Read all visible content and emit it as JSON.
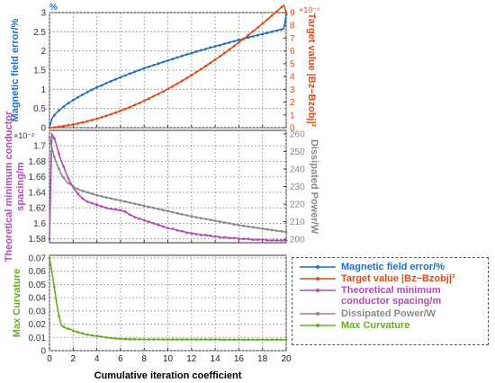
{
  "colors": {
    "blue": "#1f6fc4",
    "red": "#e04a1a",
    "purple": "#b24bb5",
    "gray": "#8a8a8a",
    "green": "#6aab26"
  },
  "chart_data": [
    {
      "type": "line",
      "panel": "top",
      "x": [
        0,
        0.2,
        0.4,
        0.6,
        0.8,
        1,
        1.2,
        1.4,
        1.6,
        1.8,
        2,
        2.2,
        2.4,
        2.6,
        2.8,
        3,
        3.2,
        3.4,
        3.6,
        3.8,
        4,
        4.2,
        4.4,
        4.6,
        4.8,
        5,
        5.2,
        5.4,
        5.6,
        5.8,
        6,
        6.2,
        6.4,
        6.6,
        6.8,
        7,
        7.2,
        7.4,
        7.6,
        7.8,
        8,
        8.2,
        8.4,
        8.6,
        8.8,
        9,
        9.2,
        9.4,
        9.6,
        9.8,
        10,
        10.2,
        10.4,
        10.6,
        10.8,
        11,
        11.2,
        11.4,
        11.6,
        11.8,
        12,
        12.2,
        12.4,
        12.6,
        12.8,
        13,
        13.2,
        13.4,
        13.6,
        13.8,
        14,
        14.2,
        14.4,
        14.6,
        14.8,
        15,
        15.2,
        15.4,
        15.6,
        15.8,
        16,
        16.2,
        16.4,
        16.6,
        16.8,
        17,
        17.2,
        17.4,
        17.6,
        17.8,
        18,
        18.2,
        18.4,
        18.6,
        18.8,
        19,
        19.2,
        19.4,
        19.6,
        19.8,
        20
      ],
      "left_axis": {
        "label": "Magnetic field error/%",
        "unit_label": "%",
        "ylim": [
          0,
          3
        ],
        "ticks": [
          "0",
          "0.5",
          "1",
          "1.5",
          "2",
          "2.5",
          "3"
        ]
      },
      "right_axis": {
        "label": "Target value |Bz−Bzobj|²",
        "exponent_label": "×10⁻⁶",
        "ylim": [
          0,
          9
        ],
        "ticks": [
          "0",
          "1",
          "2",
          "3",
          "4",
          "5",
          "6",
          "7",
          "8",
          "9"
        ]
      },
      "series": [
        {
          "name": "Magnetic field error/%",
          "axis": "left",
          "color": "#1f6fc4",
          "values": [
            0.0,
            0.23,
            0.32,
            0.39,
            0.45,
            0.5,
            0.55,
            0.6,
            0.64,
            0.68,
            0.72,
            0.76,
            0.79,
            0.83,
            0.86,
            0.89,
            0.93,
            0.96,
            0.99,
            1.02,
            1.05,
            1.08,
            1.1,
            1.13,
            1.16,
            1.19,
            1.21,
            1.24,
            1.26,
            1.29,
            1.31,
            1.34,
            1.36,
            1.39,
            1.41,
            1.43,
            1.46,
            1.48,
            1.5,
            1.52,
            1.55,
            1.57,
            1.59,
            1.61,
            1.63,
            1.65,
            1.67,
            1.69,
            1.71,
            1.73,
            1.75,
            1.77,
            1.79,
            1.81,
            1.83,
            1.85,
            1.87,
            1.89,
            1.91,
            1.92,
            1.94,
            1.96,
            1.98,
            2.0,
            2.02,
            2.03,
            2.05,
            2.07,
            2.09,
            2.1,
            2.12,
            2.14,
            2.15,
            2.17,
            2.19,
            2.2,
            2.22,
            2.24,
            2.25,
            2.27,
            2.29,
            2.3,
            2.32,
            2.33,
            2.35,
            2.37,
            2.38,
            2.4,
            2.41,
            2.43,
            2.44,
            2.46,
            2.47,
            2.49,
            2.5,
            2.52,
            2.53,
            2.55,
            2.56,
            2.58,
            2.95
          ]
        },
        {
          "name": "Target value |Bz−Bzobj|²",
          "axis": "right",
          "color": "#e04a1a",
          "values": [
            0.0,
            0.01,
            0.03,
            0.05,
            0.08,
            0.1,
            0.13,
            0.16,
            0.19,
            0.22,
            0.25,
            0.29,
            0.33,
            0.37,
            0.41,
            0.45,
            0.5,
            0.55,
            0.6,
            0.65,
            0.7,
            0.75,
            0.81,
            0.87,
            0.93,
            0.99,
            1.05,
            1.12,
            1.18,
            1.25,
            1.32,
            1.39,
            1.46,
            1.54,
            1.61,
            1.69,
            1.77,
            1.85,
            1.93,
            2.02,
            2.1,
            2.19,
            2.28,
            2.37,
            2.46,
            2.55,
            2.64,
            2.74,
            2.83,
            2.93,
            3.03,
            3.13,
            3.23,
            3.34,
            3.44,
            3.55,
            3.66,
            3.77,
            3.88,
            3.99,
            4.1,
            4.22,
            4.34,
            4.45,
            4.57,
            4.69,
            4.82,
            4.94,
            5.06,
            5.19,
            5.32,
            5.45,
            5.58,
            5.71,
            5.84,
            5.97,
            6.11,
            6.25,
            6.38,
            6.52,
            6.66,
            6.81,
            6.95,
            7.09,
            7.24,
            7.39,
            7.53,
            7.68,
            7.83,
            7.99,
            8.14,
            8.29,
            8.45,
            8.61,
            8.76,
            8.92,
            9.08,
            9.25,
            9.41,
            9.57,
            9.0
          ]
        }
      ]
    },
    {
      "type": "line",
      "panel": "middle",
      "x": [
        0,
        0.2,
        0.4,
        0.6,
        0.8,
        1,
        1.2,
        1.4,
        1.6,
        1.8,
        2,
        2.2,
        2.4,
        2.6,
        2.8,
        3,
        3.2,
        3.4,
        3.6,
        3.8,
        4,
        4.2,
        4.4,
        4.6,
        4.8,
        5,
        5.2,
        5.4,
        5.6,
        5.8,
        6,
        6.2,
        6.4,
        6.6,
        6.8,
        7,
        7.2,
        7.4,
        7.6,
        7.8,
        8,
        8.2,
        8.4,
        8.6,
        8.8,
        9,
        9.2,
        9.4,
        9.6,
        9.8,
        10,
        10.2,
        10.4,
        10.6,
        10.8,
        11,
        11.2,
        11.4,
        11.6,
        11.8,
        12,
        12.2,
        12.4,
        12.6,
        12.8,
        13,
        13.2,
        13.4,
        13.6,
        13.8,
        14,
        14.2,
        14.4,
        14.6,
        14.8,
        15,
        15.2,
        15.4,
        15.6,
        15.8,
        16,
        16.2,
        16.4,
        16.6,
        16.8,
        17,
        17.2,
        17.4,
        17.6,
        17.8,
        18,
        18.2,
        18.4,
        18.6,
        18.8,
        19,
        19.2,
        19.4,
        19.6,
        19.8,
        20
      ],
      "left_axis": {
        "label": "Theoretical minimum conductor spacing/m",
        "exponent_label": "×10⁻²",
        "ylim": [
          1.575,
          1.72
        ],
        "ticks": [
          "1.58",
          "1.6",
          "1.62",
          "1.64",
          "1.66",
          "1.68",
          "1.7"
        ]
      },
      "right_axis": {
        "label": "Dissipated Power/W",
        "ylim": [
          198,
          262
        ],
        "ticks": [
          "200",
          "210",
          "220",
          "230",
          "240",
          "250",
          "260"
        ]
      },
      "series": [
        {
          "name": "Theoretical minimum conductor spacing/m",
          "axis": "left",
          "color": "#b24bb5",
          "values": [
            1.58,
            1.715,
            1.71,
            1.7,
            1.69,
            1.68,
            1.673,
            1.665,
            1.658,
            1.652,
            1.647,
            1.642,
            1.638,
            1.635,
            1.632,
            1.63,
            1.628,
            1.627,
            1.626,
            1.625,
            1.624,
            1.623,
            1.622,
            1.621,
            1.62,
            1.619,
            1.619,
            1.618,
            1.618,
            1.617,
            1.617,
            1.616,
            1.615,
            1.613,
            1.611,
            1.61,
            1.608,
            1.607,
            1.606,
            1.605,
            1.604,
            1.603,
            1.602,
            1.601,
            1.6,
            1.599,
            1.598,
            1.597,
            1.596,
            1.595,
            1.594,
            1.593,
            1.593,
            1.592,
            1.591,
            1.59,
            1.59,
            1.589,
            1.588,
            1.588,
            1.587,
            1.587,
            1.586,
            1.586,
            1.585,
            1.585,
            1.585,
            1.584,
            1.584,
            1.583,
            1.583,
            1.583,
            1.582,
            1.582,
            1.582,
            1.582,
            1.581,
            1.581,
            1.581,
            1.581,
            1.58,
            1.58,
            1.58,
            1.58,
            1.58,
            1.579,
            1.579,
            1.579,
            1.579,
            1.579,
            1.579,
            1.579,
            1.578,
            1.578,
            1.578,
            1.578,
            1.578,
            1.578,
            1.578,
            1.578,
            1.578
          ]
        },
        {
          "name": "Dissipated Power/W",
          "axis": "right",
          "color": "#8a8a8a",
          "values": [
            258,
            252,
            247,
            243,
            240,
            237,
            235,
            233,
            232,
            231,
            230,
            229.2,
            228.5,
            228,
            227.5,
            227.1,
            226.7,
            226.3,
            225.9,
            225.5,
            225.1,
            224.8,
            224.4,
            224.1,
            223.8,
            223.5,
            223.2,
            222.9,
            222.6,
            222.3,
            222.0,
            221.7,
            221.4,
            221.1,
            220.8,
            220.5,
            220.2,
            219.9,
            219.6,
            219.3,
            219.0,
            218.7,
            218.4,
            218.1,
            217.8,
            217.5,
            217.2,
            216.9,
            216.6,
            216.3,
            216.0,
            215.7,
            215.4,
            215.1,
            214.8,
            214.5,
            214.2,
            213.9,
            213.6,
            213.3,
            213.0,
            212.8,
            212.5,
            212.3,
            212.0,
            211.8,
            211.5,
            211.3,
            211.0,
            210.8,
            210.5,
            210.3,
            210.0,
            209.8,
            209.5,
            209.3,
            209.0,
            208.8,
            208.5,
            208.3,
            208.0,
            207.8,
            207.6,
            207.4,
            207.2,
            207.0,
            206.8,
            206.6,
            206.4,
            206.2,
            206.0,
            205.8,
            205.6,
            205.4,
            205.2,
            205.0,
            204.8,
            204.6,
            204.5,
            204.3,
            204.1
          ]
        }
      ]
    },
    {
      "type": "line",
      "panel": "bottom",
      "x": [
        0,
        0.2,
        0.4,
        0.6,
        0.8,
        1,
        1.2,
        1.4,
        1.6,
        1.8,
        2,
        2.2,
        2.4,
        2.6,
        2.8,
        3,
        3.2,
        3.4,
        3.6,
        3.8,
        4,
        4.2,
        4.4,
        4.6,
        4.8,
        5,
        5.2,
        5.4,
        5.6,
        5.8,
        6,
        6.2,
        6.4,
        6.6,
        6.8,
        7,
        7.2,
        7.4,
        7.6,
        7.8,
        8,
        8.2,
        8.4,
        8.6,
        8.8,
        9,
        9.2,
        9.4,
        9.6,
        9.8,
        10,
        10.2,
        10.4,
        10.6,
        10.8,
        11,
        11.2,
        11.4,
        11.6,
        11.8,
        12,
        12.2,
        12.4,
        12.6,
        12.8,
        13,
        13.2,
        13.4,
        13.6,
        13.8,
        14,
        14.2,
        14.4,
        14.6,
        14.8,
        15,
        15.2,
        15.4,
        15.6,
        15.8,
        16,
        16.2,
        16.4,
        16.6,
        16.8,
        17,
        17.2,
        17.4,
        17.6,
        17.8,
        18,
        18.2,
        18.4,
        18.6,
        18.8,
        19,
        19.2,
        19.4,
        19.6,
        19.8,
        20
      ],
      "xlabel": "Cumulative iteration coefficient",
      "xlim": [
        0,
        20
      ],
      "x_ticks": [
        "0",
        "2",
        "4",
        "6",
        "8",
        "10",
        "12",
        "14",
        "16",
        "18",
        "20"
      ],
      "left_axis": {
        "label": "Max Curvature",
        "ylim": [
          0,
          0.072
        ],
        "ticks": [
          "0",
          "0.01",
          "0.02",
          "0.03",
          "0.04",
          "0.05",
          "0.06",
          "0.07"
        ]
      },
      "series": [
        {
          "name": "Max Curvature",
          "axis": "left",
          "color": "#6aab26",
          "values": [
            0.07,
            0.06,
            0.048,
            0.036,
            0.026,
            0.019,
            0.018,
            0.017,
            0.0165,
            0.016,
            0.015,
            0.0145,
            0.014,
            0.0135,
            0.013,
            0.0125,
            0.012,
            0.0118,
            0.0115,
            0.0112,
            0.011,
            0.0108,
            0.0105,
            0.0102,
            0.01,
            0.0098,
            0.0096,
            0.0094,
            0.0092,
            0.009,
            0.0089,
            0.0088,
            0.0087,
            0.0087,
            0.0086,
            0.0086,
            0.0086,
            0.0085,
            0.0085,
            0.0085,
            0.0085,
            0.0085,
            0.0085,
            0.0085,
            0.0085,
            0.0085,
            0.0085,
            0.0084,
            0.0084,
            0.0084,
            0.0084,
            0.0084,
            0.0084,
            0.0084,
            0.0084,
            0.0084,
            0.0084,
            0.0084,
            0.0084,
            0.0084,
            0.0084,
            0.0084,
            0.0084,
            0.0084,
            0.0084,
            0.0084,
            0.0084,
            0.0084,
            0.0084,
            0.0084,
            0.0084,
            0.0084,
            0.0083,
            0.0083,
            0.0083,
            0.0083,
            0.0083,
            0.0083,
            0.0083,
            0.0083,
            0.0083,
            0.0083,
            0.0083,
            0.0083,
            0.0083,
            0.0083,
            0.0083,
            0.0083,
            0.0083,
            0.0083,
            0.0083,
            0.0083,
            0.0083,
            0.0083,
            0.0083,
            0.0083,
            0.0083,
            0.0083,
            0.0083,
            0.0083,
            0.0083
          ]
        }
      ]
    }
  ],
  "legend": [
    {
      "label": "Magnetic field error/%",
      "color": "#1f6fc4"
    },
    {
      "label": "Target value |Bz−Bzobj|²",
      "color": "#e04a1a"
    },
    {
      "label": "Theoretical minimum conductor spacing/m",
      "color": "#b24bb5"
    },
    {
      "label": "Dissipated Power/W",
      "color": "#8a8a8a"
    },
    {
      "label": "Max Curvature",
      "color": "#6aab26"
    }
  ]
}
